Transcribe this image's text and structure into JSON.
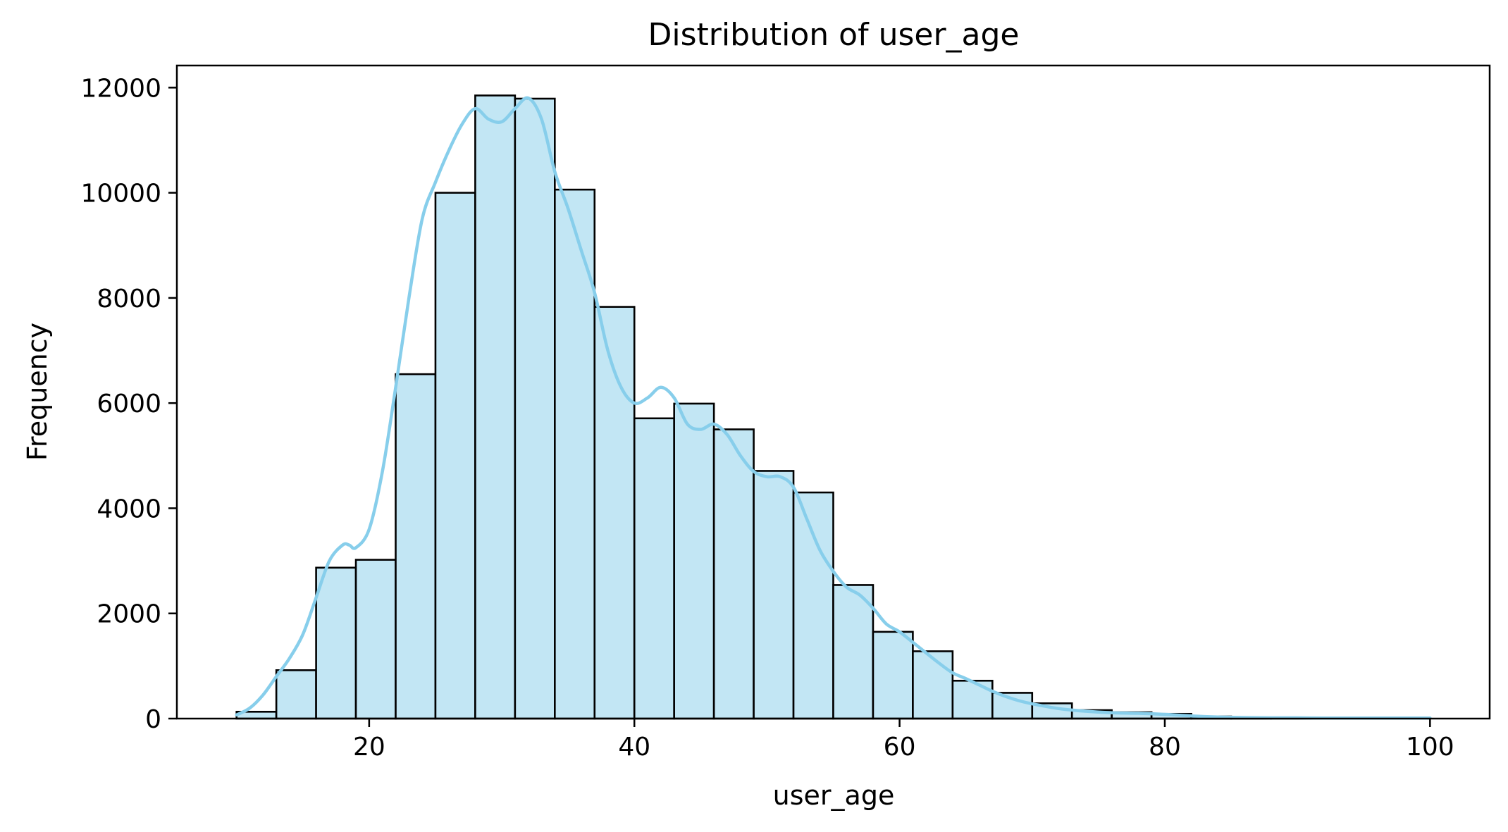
{
  "chart_data": {
    "type": "bar",
    "title": "Distribution of user_age",
    "xlabel": "user_age",
    "ylabel": "Frequency",
    "xlim": [
      5.5,
      104.5
    ],
    "ylim": [
      0,
      12420
    ],
    "x_ticks": [
      20,
      40,
      60,
      80,
      100
    ],
    "y_ticks": [
      0,
      2000,
      4000,
      6000,
      8000,
      10000,
      12000
    ],
    "grid": false,
    "legend": "none",
    "bar_fill": "#c2e6f4",
    "bar_edge": "#000000",
    "kde_color": "#87ceeb",
    "bins": [
      {
        "x0": 10.0,
        "x1": 13.0,
        "count": 130
      },
      {
        "x0": 13.0,
        "x1": 16.0,
        "count": 920
      },
      {
        "x0": 16.0,
        "x1": 19.0,
        "count": 2870
      },
      {
        "x0": 19.0,
        "x1": 22.0,
        "count": 3020
      },
      {
        "x0": 22.0,
        "x1": 25.0,
        "count": 6550
      },
      {
        "x0": 25.0,
        "x1": 28.0,
        "count": 10000
      },
      {
        "x0": 28.0,
        "x1": 31.0,
        "count": 11850
      },
      {
        "x0": 31.0,
        "x1": 34.0,
        "count": 11790
      },
      {
        "x0": 34.0,
        "x1": 37.0,
        "count": 10060
      },
      {
        "x0": 37.0,
        "x1": 40.0,
        "count": 7830
      },
      {
        "x0": 40.0,
        "x1": 43.0,
        "count": 5710
      },
      {
        "x0": 43.0,
        "x1": 46.0,
        "count": 5990
      },
      {
        "x0": 46.0,
        "x1": 49.0,
        "count": 5500
      },
      {
        "x0": 49.0,
        "x1": 52.0,
        "count": 4710
      },
      {
        "x0": 52.0,
        "x1": 55.0,
        "count": 4300
      },
      {
        "x0": 55.0,
        "x1": 58.0,
        "count": 2540
      },
      {
        "x0": 58.0,
        "x1": 61.0,
        "count": 1650
      },
      {
        "x0": 61.0,
        "x1": 64.0,
        "count": 1280
      },
      {
        "x0": 64.0,
        "x1": 67.0,
        "count": 720
      },
      {
        "x0": 67.0,
        "x1": 70.0,
        "count": 490
      },
      {
        "x0": 70.0,
        "x1": 73.0,
        "count": 290
      },
      {
        "x0": 73.0,
        "x1": 76.0,
        "count": 160
      },
      {
        "x0": 76.0,
        "x1": 79.0,
        "count": 120
      },
      {
        "x0": 79.0,
        "x1": 82.0,
        "count": 90
      },
      {
        "x0": 82.0,
        "x1": 85.0,
        "count": 40
      },
      {
        "x0": 85.0,
        "x1": 88.0,
        "count": 20
      },
      {
        "x0": 88.0,
        "x1": 91.0,
        "count": 20
      },
      {
        "x0": 91.0,
        "x1": 94.0,
        "count": 10
      },
      {
        "x0": 94.0,
        "x1": 97.0,
        "count": 10
      },
      {
        "x0": 97.0,
        "x1": 100.0,
        "count": 10
      }
    ],
    "kde": {
      "x": [
        10,
        11,
        12,
        13,
        14,
        15,
        16,
        17,
        18,
        18.5,
        19,
        20,
        21,
        22,
        23,
        24,
        25,
        26,
        27,
        28,
        29,
        30,
        31,
        32,
        33,
        34,
        35,
        36,
        37,
        38,
        39,
        40,
        41,
        42,
        43,
        44,
        45,
        46,
        47,
        48,
        49,
        50,
        51,
        52,
        53,
        54,
        55,
        56,
        57,
        58,
        59,
        60,
        61,
        62,
        63,
        64,
        65,
        66,
        67,
        68,
        69,
        70,
        72,
        74,
        76,
        78,
        80,
        82,
        84,
        86,
        88,
        90,
        92,
        94,
        96,
        98,
        100
      ],
      "y": [
        70,
        200,
        450,
        800,
        1150,
        1600,
        2300,
        3000,
        3300,
        3300,
        3250,
        3600,
        4700,
        6300,
        8000,
        9500,
        10200,
        10800,
        11300,
        11600,
        11400,
        11350,
        11600,
        11800,
        11400,
        10400,
        9700,
        8900,
        8100,
        7000,
        6300,
        6000,
        6100,
        6300,
        6100,
        5600,
        5500,
        5600,
        5400,
        5000,
        4700,
        4600,
        4600,
        4400,
        3800,
        3200,
        2800,
        2500,
        2350,
        2100,
        1800,
        1650,
        1450,
        1250,
        1050,
        870,
        760,
        640,
        520,
        420,
        340,
        280,
        190,
        140,
        110,
        100,
        80,
        50,
        30,
        20,
        15,
        15,
        10,
        10,
        10,
        10,
        10
      ]
    }
  }
}
